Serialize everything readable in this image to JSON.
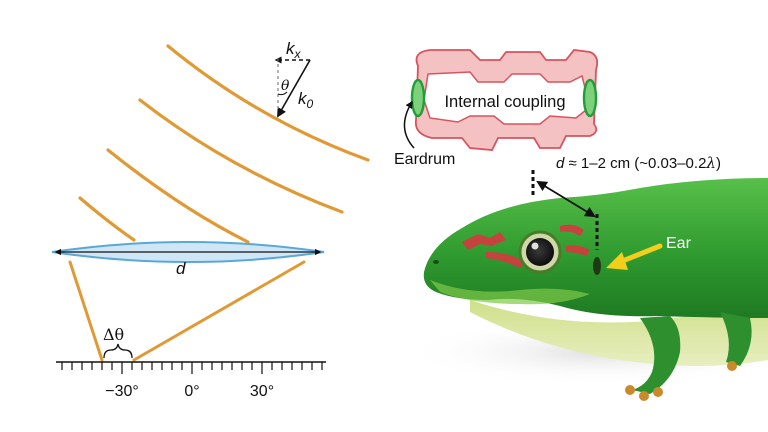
{
  "wave_vector": {
    "k_x": "k",
    "k_x_sub": "x",
    "theta": "θ",
    "k_0": "k",
    "k_0_sub": "0"
  },
  "lens_label": "d",
  "angle_spread": "Δθ",
  "angle_axis": {
    "ticks": [
      "−30°",
      "0°",
      "30°"
    ]
  },
  "ear_schematic": {
    "coupling_label": "Internal coupling",
    "eardrum_label": "Eardrum"
  },
  "distance_label": {
    "d": "d",
    "rest": " ≈ 1–2 cm (~0.03–0.2",
    "lambda": "λ",
    "close": ")"
  },
  "ear_label": "Ear",
  "colors": {
    "wave": "#e09a35",
    "lens_fill": "#cfe6f6",
    "lens_stroke": "#5aa8d8",
    "skull_fill": "#f5c2c4",
    "skull_stroke": "#d9535e",
    "eardrum": "#1f9e3a",
    "ear_arrow": "#f2cf1b",
    "gecko_green": "#3aa536"
  }
}
